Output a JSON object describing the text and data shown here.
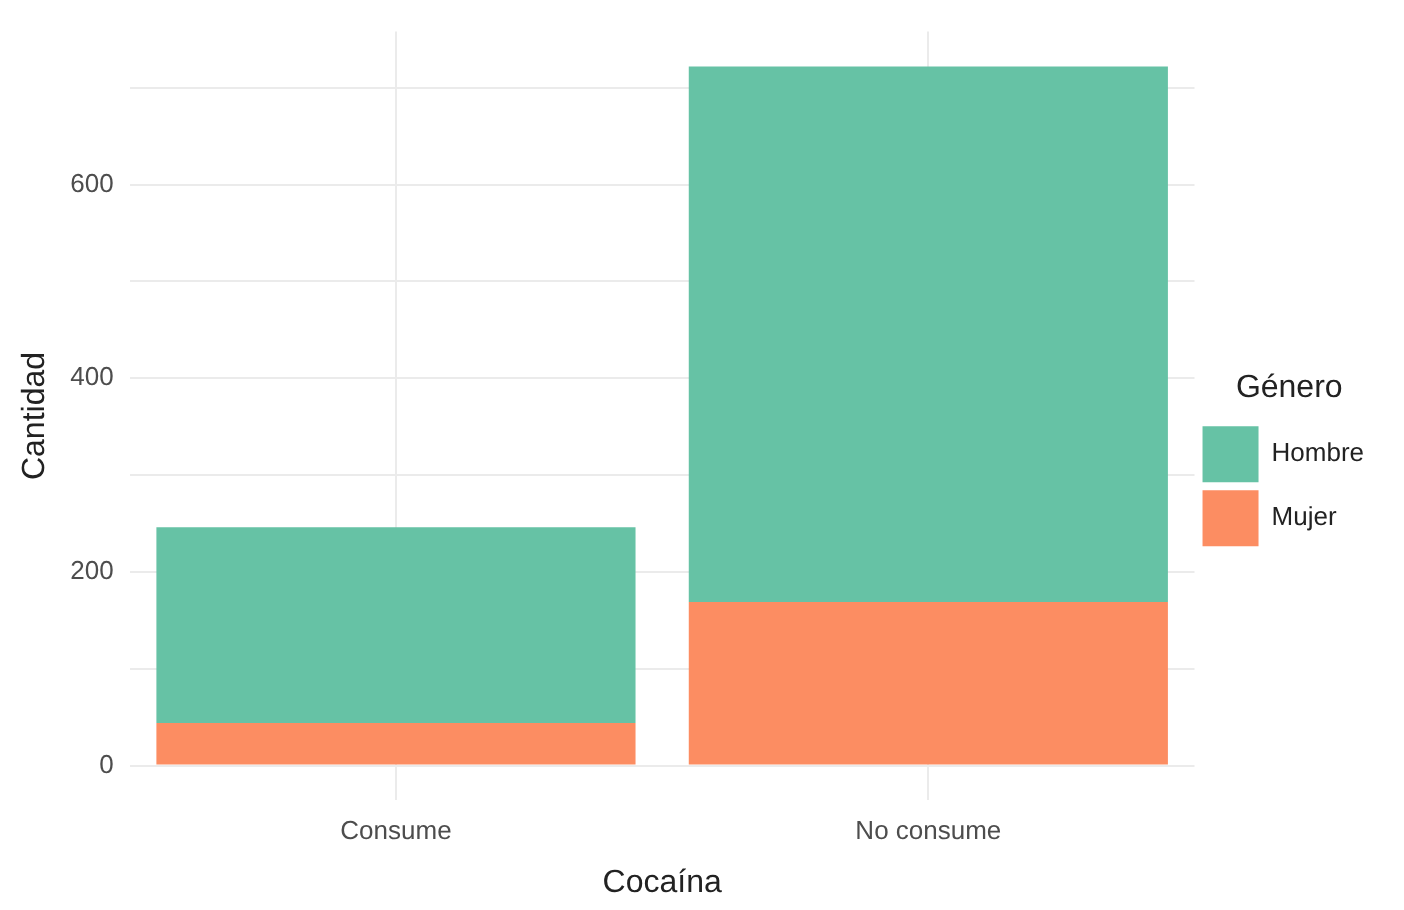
{
  "chart_data": {
    "type": "bar",
    "stacked": true,
    "xlabel": "Cocaína",
    "ylabel": "Cantidad",
    "legend_title": "Género",
    "legend": "right",
    "grid": true,
    "categories": [
      "Consume",
      "No consume"
    ],
    "series": [
      {
        "name": "Mujer",
        "color": "#fc8d62",
        "values": [
          44,
          169
        ]
      },
      {
        "name": "Hombre",
        "color": "#66c2a5",
        "values": [
          202,
          553
        ]
      }
    ],
    "ylim": [
      -36,
      758
    ],
    "yticks": [
      0,
      {
        "value": 100,
        "label": null
      },
      200,
      {
        "value": 300,
        "label": null
      },
      400,
      {
        "value": 500,
        "label": null
      },
      600,
      {
        "value": 700,
        "label": null
      }
    ]
  }
}
